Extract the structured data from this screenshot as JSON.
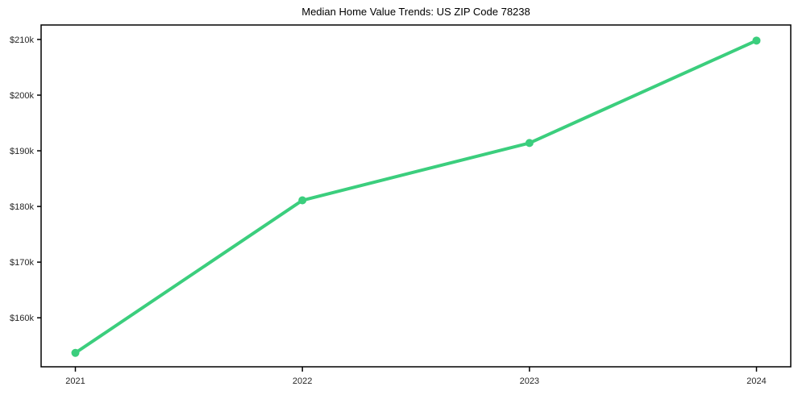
{
  "page": {
    "background": "#ffffff"
  },
  "chart_data": {
    "type": "line",
    "title": "Median Home Value Trends: US ZIP Code 78238",
    "x": [
      2021,
      2022,
      2023,
      2024
    ],
    "x_tick_labels": [
      "2021",
      "2022",
      "2023",
      "2024"
    ],
    "series": [
      {
        "name": "median-home-value",
        "values": [
          153700,
          181100,
          191400,
          209800
        ],
        "color": "#3bce7d",
        "marker": "circle"
      }
    ],
    "y_ticks": [
      160000,
      170000,
      180000,
      190000,
      200000,
      210000
    ],
    "y_tick_labels": [
      "$160k",
      "$170k",
      "$180k",
      "$190k",
      "$200k",
      "$210k"
    ],
    "ylim": [
      151200,
      212600
    ],
    "xlabel": "",
    "ylabel": "",
    "grid": false,
    "legend": "none",
    "axis_color": "#000000",
    "text_color": "#262626"
  }
}
